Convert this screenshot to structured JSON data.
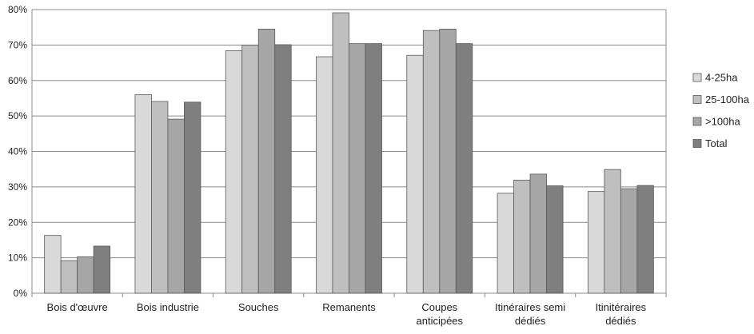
{
  "chart_data": {
    "type": "bar",
    "title": "",
    "xlabel": "",
    "ylabel": "",
    "ylim": [
      0,
      80
    ],
    "y_ticks": [
      0,
      10,
      20,
      30,
      40,
      50,
      60,
      70,
      80
    ],
    "y_tick_format": "{v}%",
    "grid": true,
    "legend_position": "right",
    "categories": [
      [
        "Bois d'œuvre"
      ],
      [
        "Bois industrie"
      ],
      [
        "Souches"
      ],
      [
        "Remanents"
      ],
      [
        "Coupes",
        "anticipées"
      ],
      [
        "Itinéraires semi",
        "dédiés"
      ],
      [
        "Itinitéraires",
        "dédiés"
      ]
    ],
    "series": [
      {
        "name": "4-25ha",
        "color": "#d9d9d9",
        "values": [
          16.3,
          56.0,
          68.4,
          66.7,
          67.1,
          28.2,
          28.7
        ]
      },
      {
        "name": "25-100ha",
        "color": "#bfbfbf",
        "values": [
          9.2,
          54.1,
          70.0,
          79.1,
          74.1,
          31.9,
          34.9
        ]
      },
      {
        "name": ">100ha",
        "color": "#a6a6a6",
        "values": [
          10.3,
          49.1,
          74.5,
          70.4,
          74.5,
          33.6,
          29.5
        ]
      },
      {
        "name": "Total",
        "color": "#7f7f7f",
        "values": [
          13.3,
          53.9,
          70.1,
          70.4,
          70.4,
          30.3,
          30.4
        ]
      }
    ]
  }
}
